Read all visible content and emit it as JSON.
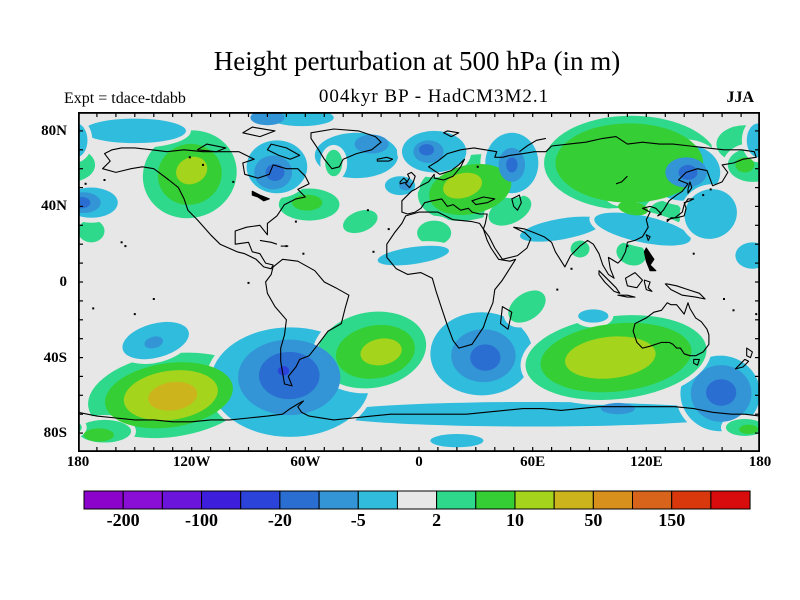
{
  "chart_data": {
    "type": "filled-contour-map",
    "title": "Height perturbation at 500 hPa (in m)",
    "subtitle": "004kyr BP - HadCM3M2.1",
    "experiment_label": "Expt = tdace-tdabb",
    "season_label": "JJA",
    "projection": "equirectangular",
    "lon_range": [
      -180,
      180
    ],
    "lat_range": [
      -90,
      90
    ],
    "tick_interval_deg": 10,
    "x_tick_labels": [
      {
        "label": "180",
        "lon": -180
      },
      {
        "label": "120W",
        "lon": -120
      },
      {
        "label": "60W",
        "lon": -60
      },
      {
        "label": "0",
        "lon": 0
      },
      {
        "label": "60E",
        "lon": 60
      },
      {
        "label": "120E",
        "lon": 120
      },
      {
        "label": "180",
        "lon": 180
      }
    ],
    "y_tick_labels": [
      {
        "label": "80N",
        "lat": 80
      },
      {
        "label": "40N",
        "lat": 40
      },
      {
        "label": "0",
        "lat": 0
      },
      {
        "label": "40S",
        "lat": -40
      },
      {
        "label": "80S",
        "lat": -80
      }
    ],
    "colorbar": {
      "colors": [
        "#8c04cc",
        "#8a0ed6",
        "#6a14dc",
        "#3c1edc",
        "#2b43d8",
        "#2b6ed2",
        "#3395d5",
        "#30bcdc",
        "#e7e7e7",
        "#2fd98c",
        "#35ce35",
        "#a4d41c",
        "#ccb41c",
        "#d8901c",
        "#d8641c",
        "#d8380c",
        "#d80c0c"
      ],
      "levels": [
        -200,
        -150,
        -100,
        -50,
        -20,
        -10,
        -5,
        -2,
        2,
        5,
        10,
        20,
        50,
        100,
        150,
        200
      ],
      "boundary_labels": [
        "-200",
        "-100",
        "-20",
        "-5",
        "2",
        "10",
        "50",
        "150"
      ],
      "labeled_boundary_indices": [
        1,
        3,
        5,
        7,
        9,
        11,
        13,
        15
      ]
    },
    "background_color": "#e7e7e7",
    "feature_format": "[lon, lat, rx_deg, ry_deg, rotation_deg, band(-4..4 maps to colorbar color 8+band), halo(0/1), wrap(0/1)]",
    "features": [
      [
        60,
        -70,
        108,
        6.5,
        0,
        -1,
        0,
        0
      ],
      [
        20,
        -84,
        14,
        3.5,
        0,
        -1,
        0,
        0
      ],
      [
        -131,
        -60,
        44,
        22,
        -8,
        1,
        1,
        0
      ],
      [
        -68,
        -53,
        42,
        29,
        0,
        -1,
        1,
        0
      ],
      [
        33,
        -38,
        27,
        22,
        0,
        -1,
        1,
        0
      ],
      [
        159,
        -59,
        21,
        20,
        0,
        -1,
        1,
        0
      ],
      [
        104,
        -40,
        48,
        22,
        -6,
        1,
        1,
        0
      ],
      [
        -25,
        -36,
        29,
        20,
        -10,
        1,
        1,
        0
      ],
      [
        -166,
        -79,
        14,
        6,
        0,
        1,
        1,
        0
      ],
      [
        172,
        -77,
        10,
        4.5,
        0,
        1,
        1,
        1
      ],
      [
        -139,
        -31,
        18,
        9,
        -15,
        -1,
        1,
        0
      ],
      [
        -58,
        41,
        16,
        8.5,
        0,
        1,
        1,
        0
      ],
      [
        -173,
        27,
        7,
        6,
        0,
        1,
        1,
        0
      ],
      [
        -31,
        32,
        9.5,
        5.5,
        -20,
        1,
        1,
        0
      ],
      [
        27,
        50,
        28,
        17,
        -12,
        1,
        1,
        0
      ],
      [
        48,
        38,
        12,
        7,
        -25,
        1,
        1,
        0
      ],
      [
        112,
        63,
        46,
        25,
        0,
        1,
        1,
        0
      ],
      [
        172,
        73,
        15,
        10,
        0,
        1,
        1,
        1
      ],
      [
        130,
        36,
        9,
        7,
        0,
        1,
        1,
        0
      ],
      [
        112,
        15,
        8,
        6,
        20,
        1,
        1,
        0
      ],
      [
        85,
        17.5,
        5,
        4.5,
        0,
        1,
        1,
        0
      ],
      [
        8,
        26,
        9,
        6.5,
        0,
        1,
        1,
        0
      ],
      [
        176,
        62,
        13,
        9,
        0,
        1,
        1,
        1
      ],
      [
        57,
        -13,
        11,
        7,
        -35,
        1,
        1,
        0
      ],
      [
        -121,
        57,
        25,
        23,
        -20,
        1,
        1,
        0
      ],
      [
        -150,
        80,
        27,
        6.5,
        0,
        -1,
        1,
        0
      ],
      [
        -62,
        87,
        17,
        4.5,
        0,
        -1,
        1,
        0
      ],
      [
        -75,
        61,
        16,
        14,
        0,
        -1,
        1,
        0
      ],
      [
        -33,
        67,
        22,
        12,
        0,
        -1,
        1,
        0
      ],
      [
        8,
        69,
        17,
        11,
        0,
        -1,
        1,
        0
      ],
      [
        179,
        75,
        6,
        9,
        0,
        -1,
        1,
        1
      ],
      [
        -173,
        42,
        14,
        8,
        0,
        -1,
        1,
        0
      ],
      [
        -10,
        51,
        8,
        5,
        0,
        -1,
        1,
        0
      ],
      [
        49,
        63,
        14,
        16,
        0,
        -1,
        1,
        0
      ],
      [
        140,
        58,
        19,
        15,
        0,
        -1,
        1,
        0
      ],
      [
        75,
        28,
        22,
        5.5,
        -10,
        -1,
        1,
        0
      ],
      [
        118,
        28,
        26,
        7,
        12,
        -1,
        1,
        0
      ],
      [
        154,
        36,
        14,
        13,
        -25,
        -1,
        1,
        0
      ],
      [
        108,
        47,
        8,
        4.5,
        0,
        -1,
        1,
        0
      ],
      [
        -3,
        14,
        19,
        4.5,
        -8,
        -1,
        1,
        0
      ],
      [
        92,
        -18,
        8,
        3.5,
        0,
        -1,
        1,
        0
      ],
      [
        176,
        14,
        9,
        7,
        0,
        -1,
        1,
        0
      ],
      [
        -45,
        63,
        4.5,
        7,
        0,
        1,
        1,
        0
      ],
      [
        -121,
        57,
        17,
        16,
        -20,
        2,
        0,
        0
      ],
      [
        -59,
        42,
        8,
        4.2,
        0,
        2,
        0,
        0
      ],
      [
        27,
        49,
        22,
        13,
        -12,
        2,
        0,
        0
      ],
      [
        111,
        63,
        39,
        21,
        0,
        2,
        0,
        0
      ],
      [
        113,
        39,
        8,
        3.5,
        10,
        2,
        0,
        0
      ],
      [
        172,
        62,
        5,
        4,
        0,
        2,
        0,
        1
      ],
      [
        -132,
        -60,
        34,
        17,
        -8,
        2,
        0,
        0
      ],
      [
        -23,
        -37,
        21,
        14,
        -10,
        2,
        0,
        0
      ],
      [
        104,
        -40,
        40,
        18,
        -6,
        2,
        0,
        0
      ],
      [
        -169,
        -81,
        8,
        3.5,
        0,
        2,
        0,
        0
      ],
      [
        174,
        -78,
        5,
        2.5,
        0,
        2,
        0,
        1
      ],
      [
        -77,
        58,
        10,
        9,
        0,
        -2,
        0,
        0
      ],
      [
        -25,
        73,
        9,
        5,
        0,
        -2,
        0,
        0
      ],
      [
        5,
        69,
        8,
        6,
        0,
        -2,
        0,
        0
      ],
      [
        -177,
        42,
        9,
        5.5,
        0,
        -2,
        0,
        0
      ],
      [
        49,
        62,
        7,
        9,
        0,
        -2,
        0,
        0
      ],
      [
        141,
        58,
        11,
        8,
        0,
        -2,
        0,
        0
      ],
      [
        -7,
        51,
        3.5,
        2.5,
        0,
        -2,
        0,
        0
      ],
      [
        -140,
        -32,
        5,
        3,
        -15,
        -2,
        0,
        0
      ],
      [
        -68.5,
        -50.5,
        27,
        20,
        0,
        -2,
        0,
        0
      ],
      [
        34,
        -39,
        17,
        14,
        0,
        -2,
        0,
        0
      ],
      [
        159.5,
        -59,
        16,
        15,
        0,
        -2,
        0,
        0
      ],
      [
        105,
        -67,
        9,
        3,
        0,
        -2,
        0,
        0
      ],
      [
        -80,
        87,
        9,
        4,
        0,
        -2,
        0,
        0
      ],
      [
        -120,
        59,
        8.5,
        7,
        -25,
        3,
        0,
        0
      ],
      [
        23,
        51,
        10.5,
        6.5,
        -15,
        3,
        0,
        0
      ],
      [
        -131,
        -60,
        25,
        13,
        -8,
        3,
        0,
        0
      ],
      [
        -20,
        -37,
        11,
        7,
        -10,
        3,
        0,
        0
      ],
      [
        101,
        -40,
        24,
        11,
        -6,
        3,
        0,
        0
      ],
      [
        -76,
        58,
        5,
        4.5,
        0,
        -3,
        0,
        0
      ],
      [
        4,
        70,
        4,
        3,
        0,
        -3,
        0,
        0
      ],
      [
        -178,
        42,
        4.5,
        3,
        0,
        -3,
        0,
        0
      ],
      [
        49,
        62,
        3,
        4,
        0,
        -3,
        0,
        0
      ],
      [
        142,
        58,
        5,
        4,
        0,
        -3,
        0,
        0
      ],
      [
        -68.5,
        -49.5,
        16,
        12.5,
        0,
        -3,
        0,
        0
      ],
      [
        35,
        -40,
        8,
        7,
        0,
        -3,
        0,
        0
      ],
      [
        159.5,
        -58.5,
        8,
        7,
        0,
        -3,
        0,
        0
      ],
      [
        -130,
        -60.5,
        13,
        7.5,
        -8,
        4,
        0,
        0
      ],
      [
        -71.5,
        -47,
        3,
        2.5,
        0,
        -4,
        0,
        0
      ]
    ]
  }
}
